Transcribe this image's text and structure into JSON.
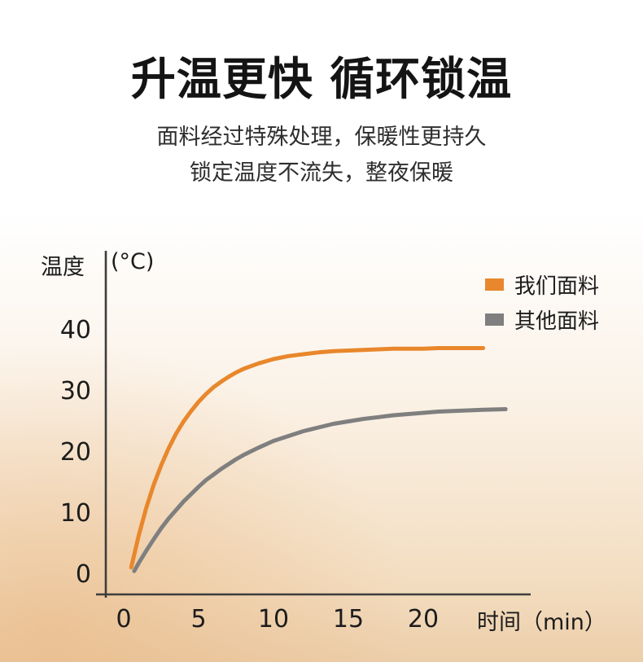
{
  "page": {
    "title": "升温更快 循环锁温",
    "subtitle_line1": "面料经过特殊处理，保暖性更持久",
    "subtitle_line2": "锁定温度不流失，整夜保暖"
  },
  "chart_data": {
    "type": "line",
    "title": "",
    "ylabel": "温度",
    "y_unit": "(°C)",
    "xlabel": "时间（min）",
    "x_ticks": [
      0,
      5,
      10,
      15,
      20
    ],
    "y_ticks": [
      0,
      10,
      20,
      30,
      40
    ],
    "xlim": [
      0,
      26
    ],
    "ylim": [
      0,
      44
    ],
    "grid": false,
    "legend_position": "top-right",
    "series": [
      {
        "name": "我们面料",
        "color": "#E8872B",
        "x": [
          0.5,
          1,
          1.5,
          2,
          2.5,
          3,
          3.5,
          4,
          4.5,
          5,
          5.5,
          6,
          6.5,
          7,
          7.5,
          8,
          9,
          10,
          11,
          12,
          13,
          14,
          15,
          16,
          17,
          18,
          19,
          20,
          21,
          22,
          23,
          24
        ],
        "y": [
          1.1,
          6.3,
          10.8,
          14.6,
          17.8,
          20.6,
          23.0,
          25.0,
          26.7,
          28.2,
          29.5,
          30.6,
          31.5,
          32.3,
          33.0,
          33.6,
          34.5,
          35.2,
          35.7,
          36.0,
          36.3,
          36.5,
          36.6,
          36.7,
          36.8,
          36.9,
          36.9,
          36.9,
          37.0,
          37.0,
          37.0,
          37.0
        ]
      },
      {
        "name": "其他面料",
        "color": "#7F7F7F",
        "x": [
          0.7,
          1,
          1.5,
          2,
          2.5,
          3,
          3.5,
          4,
          4.5,
          5,
          5.5,
          6,
          6.5,
          7,
          7.5,
          8,
          9,
          10,
          11,
          12,
          13,
          14,
          15,
          16,
          17,
          18,
          19,
          20,
          21,
          22,
          23,
          24,
          25.5
        ],
        "y": [
          0.5,
          1.8,
          3.8,
          5.7,
          7.5,
          9.1,
          10.5,
          11.9,
          13.1,
          14.3,
          15.4,
          16.3,
          17.2,
          18.0,
          18.8,
          19.5,
          20.7,
          21.8,
          22.6,
          23.4,
          24.0,
          24.6,
          25.0,
          25.4,
          25.7,
          26.0,
          26.2,
          26.4,
          26.6,
          26.7,
          26.8,
          26.9,
          27.0
        ]
      }
    ]
  },
  "theme": {
    "background_top": "#FFFFFF",
    "background_bottom": "#ECCEAA",
    "text_color": "#1C1C1C",
    "axis_color": "#3D3D3D"
  }
}
